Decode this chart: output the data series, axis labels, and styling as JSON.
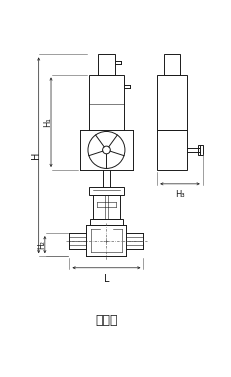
{
  "title": "常温型",
  "title_fontsize": 9,
  "line_color": "#1a1a1a",
  "bg_color": "#ffffff",
  "fig_width": 2.31,
  "fig_height": 3.77,
  "dpi": 100,
  "label_H": "H",
  "label_H1": "H₁",
  "label_H2": "H₂",
  "label_H3": "H₃",
  "label_L": "L"
}
